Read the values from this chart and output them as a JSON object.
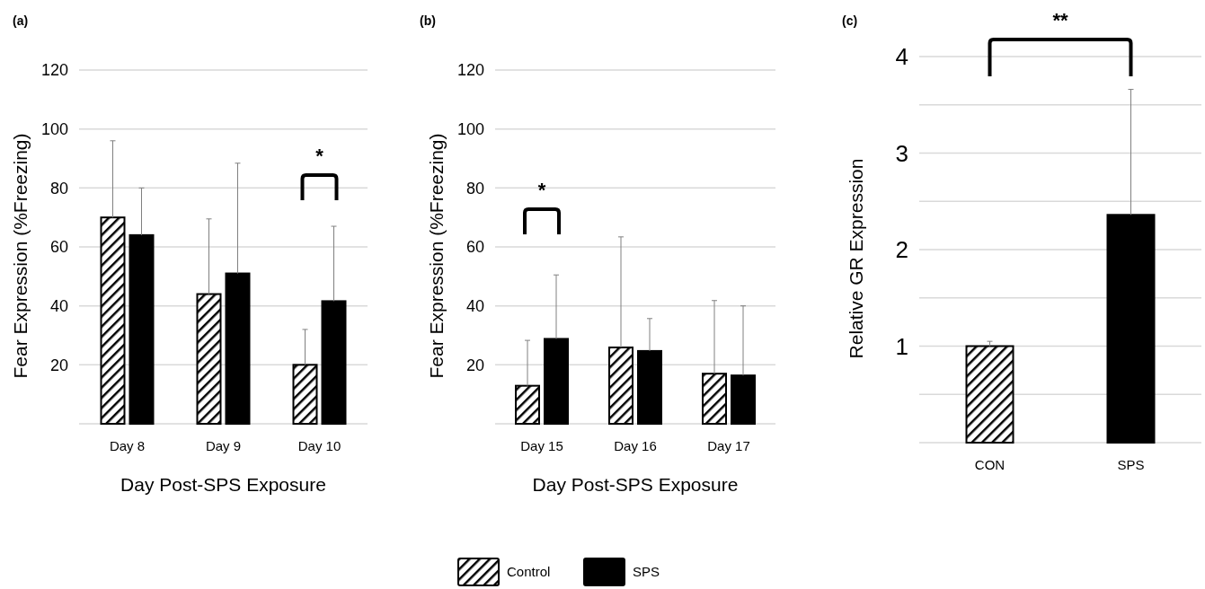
{
  "chart_data": [
    {
      "type": "bar",
      "title": "(a)",
      "xlabel": "Day Post-SPS Exposure",
      "ylabel": "Fear Expression (%Freezing)",
      "categories": [
        "Day 8",
        "Day 9",
        "Day 10"
      ],
      "series": [
        {
          "color": "#000000",
          "values": [
            70,
            44,
            20
          ],
          "errors": [
            [
              70,
              96
            ],
            [
              44,
              69.5
            ],
            [
              20,
              32
            ]
          ]
        },
        {
          "color": "#000000",
          "values": [
            64,
            51,
            41.6
          ],
          "errors": [
            [
              64,
              80
            ],
            [
              51,
              88.4
            ],
            [
              41.6,
              67
            ]
          ]
        }
      ],
      "ylim": [
        0,
        120
      ],
      "yticks": [
        {
          "value": 0,
          "label": null
        },
        20,
        40,
        60,
        80,
        100,
        120
      ],
      "grid": "y",
      "annotations": [
        "*"
      ]
    },
    {
      "type": "bar",
      "title": "(b)",
      "xlabel": "Day Post-SPS Exposure",
      "ylabel": "Fear Expression (%Freezing)",
      "categories": [
        "Day 15",
        "Day 16",
        "Day 17"
      ],
      "series": [
        {
          "name": "Control",
          "color": "#000000",
          "values": [
            12.9,
            25.9,
            17
          ],
          "errors": [
            [
              12.9,
              28.3
            ],
            [
              25.9,
              63.4
            ],
            [
              17,
              41.8
            ]
          ]
        },
        {
          "name": "SPS",
          "color": "#000000",
          "values": [
            28.8,
            24.7,
            16.4
          ],
          "errors": [
            [
              28.8,
              50.5
            ],
            [
              24.7,
              35.7
            ],
            [
              16.4,
              40
            ]
          ]
        }
      ],
      "ylim": [
        0,
        120
      ],
      "yticks": [
        {
          "value": 0,
          "label": null
        },
        20,
        40,
        60,
        80,
        100,
        120
      ],
      "grid": "y",
      "legend": "bottom",
      "annotations": [
        "*"
      ]
    },
    {
      "type": "bar",
      "title": "(c)",
      "ylabel": "Relative GR Expression",
      "stacked": true,
      "categories": [
        "CON",
        "SPS"
      ],
      "series": [
        {
          "color": "#000000",
          "values": [
            1.0,
            null
          ],
          "errors": [
            [
              1.0,
              1.05
            ],
            null
          ]
        },
        {
          "color": "#000000",
          "values": [
            null,
            2.36
          ],
          "errors": [
            null,
            [
              2.36,
              3.66
            ]
          ]
        }
      ],
      "ylim": [
        0,
        4
      ],
      "yticks": [
        {
          "value": 0,
          "label": null
        },
        {
          "value": 0.5,
          "label": null
        },
        1,
        {
          "value": 1.5,
          "label": null
        },
        2,
        {
          "value": 2.5,
          "label": null
        },
        3,
        {
          "value": 3.5,
          "label": null
        },
        4
      ],
      "grid": "y",
      "annotations": [
        "**"
      ]
    }
  ]
}
